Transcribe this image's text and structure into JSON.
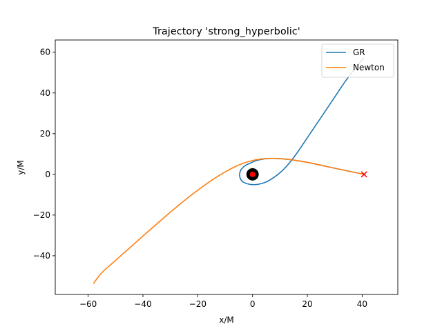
{
  "chart_data": {
    "type": "line",
    "title": "Trajectory 'strong_hyperbolic'",
    "xlabel": "x/M",
    "ylabel": "y/M",
    "xlim": [
      -72,
      53
    ],
    "ylim": [
      -59,
      66
    ],
    "xticks": [
      -60,
      -40,
      -20,
      0,
      20,
      40
    ],
    "yticks": [
      -40,
      -20,
      0,
      20,
      40,
      60
    ],
    "xtick_labels": [
      "−60",
      "−40",
      "−20",
      "0",
      "20",
      "40"
    ],
    "ytick_labels": [
      "−40",
      "−20",
      "0",
      "20",
      "40",
      "60"
    ],
    "grid": false,
    "legend_position": "top-right",
    "colors": {
      "GR": "#1f77b4",
      "Newton": "#ff7f0e",
      "start_marker": "#ff0000",
      "black_hole": "#000000",
      "center": "#ff0000"
    },
    "series": [
      {
        "name": "GR",
        "color": "#1f77b4",
        "x": [
          40.7,
          35,
          30,
          25,
          20,
          15,
          10,
          6,
          3,
          1,
          -1,
          -3,
          -4.5,
          -4.6,
          -3.5,
          -1,
          2,
          5,
          8,
          11,
          14,
          17,
          20,
          23,
          26,
          30,
          34,
          38,
          40.5
        ],
        "y": [
          0.0,
          1.6,
          3.0,
          4.5,
          5.9,
          7.0,
          7.7,
          7.8,
          7.3,
          6.6,
          5.4,
          4.0,
          1.5,
          -1.5,
          -3.7,
          -4.9,
          -4.9,
          -3.7,
          -1.3,
          2.0,
          6.5,
          12,
          18,
          24,
          30,
          38,
          46,
          53,
          57
        ]
      },
      {
        "name": "Newton",
        "color": "#ff7f0e",
        "x": [
          40.7,
          35,
          30,
          25,
          20,
          15,
          10,
          6,
          3,
          0,
          -3,
          -6,
          -10,
          -15,
          -20,
          -25,
          -30,
          -35,
          -40,
          -45,
          -50,
          -55,
          -58
        ],
        "y": [
          0.0,
          1.6,
          3.0,
          4.5,
          5.9,
          7.0,
          7.7,
          7.8,
          7.5,
          6.8,
          5.6,
          4.0,
          1.2,
          -3.0,
          -7.8,
          -13.0,
          -18.6,
          -24.4,
          -30.3,
          -36.3,
          -42.3,
          -48.3,
          -53.5
        ]
      }
    ],
    "markers": {
      "start": {
        "x": 40.7,
        "y": 0.0,
        "symbol": "×"
      },
      "black_hole": {
        "x": 0,
        "y": 0,
        "r": 2
      },
      "center": {
        "x": 0,
        "y": 0
      }
    }
  }
}
